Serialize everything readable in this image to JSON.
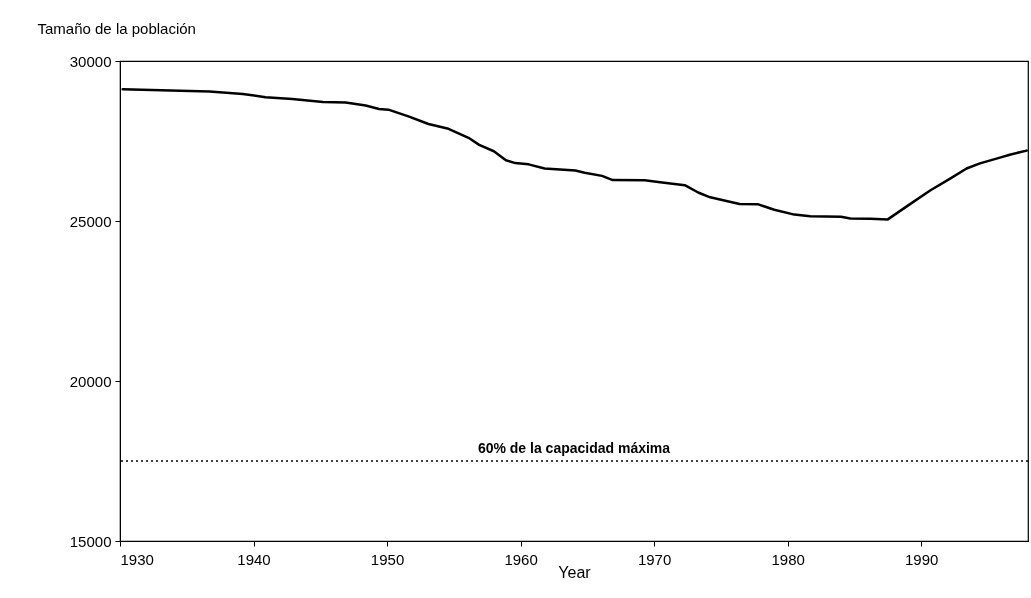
{
  "chart_data": {
    "type": "line",
    "xlabel": "Year",
    "ylabel": "Tamaño de la población",
    "x": [
      1930.2,
      1936.7,
      1939.2,
      1940.9,
      1942.9,
      1945.2,
      1946.9,
      1948.4,
      1949.4,
      1950.1,
      1951.6,
      1953.1,
      1954.6,
      1956.1,
      1956.9,
      1958.0,
      1958.9,
      1959.6,
      1960.6,
      1961.8,
      1964.1,
      1964.8,
      1966.1,
      1966.9,
      1969.3,
      1970.3,
      1972.3,
      1973.3,
      1974.2,
      1975.5,
      1976.4,
      1977.8,
      1979.0,
      1980.5,
      1981.7,
      1984.0,
      1984.7,
      1986.2,
      1987.5,
      1989.0,
      1990.7,
      1992.2,
      1993.4,
      1994.4,
      1995.9,
      1996.7,
      1997.9
    ],
    "series": [
      {
        "color": "#000000",
        "values": [
          29120,
          29050,
          28970,
          28870,
          28810,
          28720,
          28700,
          28610,
          28500,
          28480,
          28270,
          28030,
          27880,
          27600,
          27380,
          27180,
          26900,
          26810,
          26770,
          26640,
          26580,
          26510,
          26410,
          26280,
          26270,
          26220,
          26120,
          25890,
          25740,
          25620,
          25530,
          25520,
          25350,
          25200,
          25150,
          25130,
          25080,
          25070,
          25050,
          25480,
          25960,
          26330,
          26640,
          26800,
          26980,
          27080,
          27200
        ]
      }
    ],
    "xlim": [
      1930,
      1998
    ],
    "xticks": [
      1930,
      1940,
      1950,
      1960,
      1970,
      1980,
      1990
    ],
    "ylim": [
      15000,
      30000
    ],
    "yticks": [
      15000,
      20000,
      25000,
      30000
    ],
    "grid": false,
    "marker": "none",
    "line_style": "solid",
    "ref_lines": [
      {
        "axis": "y",
        "value": 17500,
        "label": "60% de la capacidad máxima",
        "color": "#000000",
        "line_style": "dotted"
      }
    ]
  }
}
